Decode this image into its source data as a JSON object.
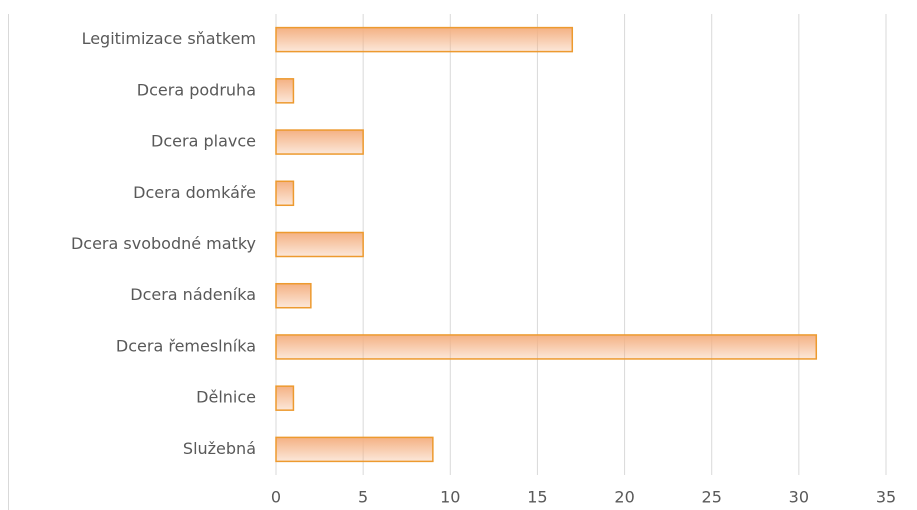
{
  "chart_data": {
    "type": "bar",
    "orientation": "horizontal",
    "categories": [
      "Legitimizace sňatkem",
      "Dcera podruha",
      "Dcera plavce",
      "Dcera domkáře",
      "Dcera svobodné matky",
      "Dcera nádeníka",
      "Dcera řemeslníka",
      "Dělnice",
      "Služebná"
    ],
    "values": [
      17,
      1,
      5,
      1,
      5,
      2,
      31,
      1,
      9
    ],
    "color": "#f4b183",
    "edge_color": "#ed9a2f",
    "xlim": [
      0,
      35
    ],
    "xticks": [
      0,
      5,
      10,
      15,
      20,
      25,
      30,
      35
    ],
    "grid": true
  }
}
